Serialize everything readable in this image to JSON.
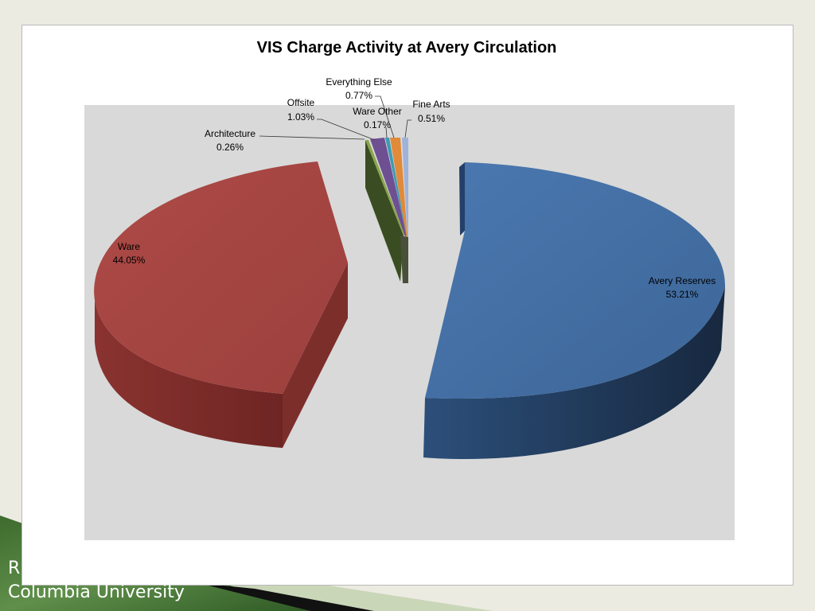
{
  "footer": {
    "line1": "R",
    "line2": "Columbia University"
  },
  "chart_data": {
    "type": "pie",
    "title": "VIS Charge Activity at Avery Circulation",
    "style": "3d-exploded",
    "legend": "none",
    "slices": [
      {
        "label": "Avery Reserves",
        "value": 53.21,
        "display": "53.21%",
        "color": "#4470a6"
      },
      {
        "label": "Ware",
        "value": 44.05,
        "display": "44.05%",
        "color": "#a64542"
      },
      {
        "label": "Architecture",
        "value": 0.26,
        "display": "0.26%",
        "color": "#8aa64d"
      },
      {
        "label": "Offsite",
        "value": 1.03,
        "display": "1.03%",
        "color": "#6e4f92"
      },
      {
        "label": "Ware Other",
        "value": 0.17,
        "display": "0.17%",
        "color": "#3d9bb5"
      },
      {
        "label": "Everything Else",
        "value": 0.77,
        "display": "0.77%",
        "color": "#e08a3a"
      },
      {
        "label": "Fine Arts",
        "value": 0.51,
        "display": "0.51%",
        "color": "#9fb3d8"
      }
    ]
  }
}
